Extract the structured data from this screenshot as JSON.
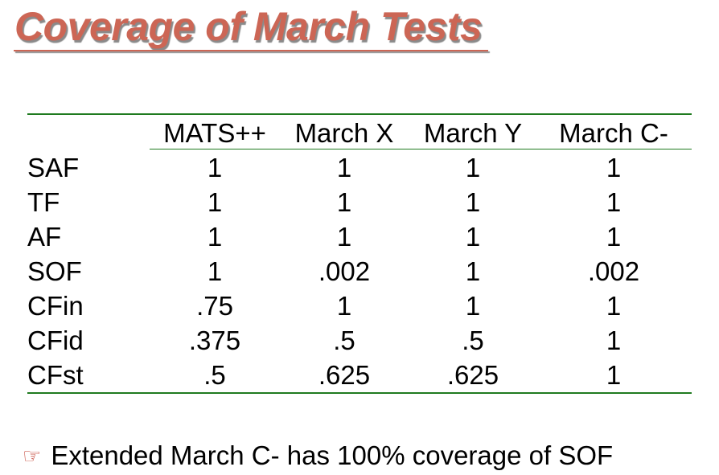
{
  "title": "Coverage of March Tests",
  "table": {
    "columns": [
      "MATS++",
      "March X",
      "March Y",
      "March C-"
    ],
    "rows": [
      {
        "label": "SAF",
        "values": [
          "1",
          "1",
          "1",
          "1"
        ]
      },
      {
        "label": "TF",
        "values": [
          "1",
          "1",
          "1",
          "1"
        ]
      },
      {
        "label": "AF",
        "values": [
          "1",
          "1",
          "1",
          "1"
        ]
      },
      {
        "label": "SOF",
        "values": [
          "1",
          ".002",
          "1",
          ".002"
        ]
      },
      {
        "label": "CFin",
        "values": [
          ".75",
          "1",
          "1",
          "1"
        ]
      },
      {
        "label": "CFid",
        "values": [
          ".375",
          ".5",
          ".5",
          "1"
        ]
      },
      {
        "label": "CFst",
        "values": [
          ".5",
          ".625",
          ".625",
          "1"
        ]
      }
    ]
  },
  "note": {
    "icon": "pointing-hand-icon",
    "text": "Extended March C- has 100% coverage of SOF"
  },
  "colors": {
    "title": "#cc6655",
    "rule": "#1f7a1f"
  }
}
